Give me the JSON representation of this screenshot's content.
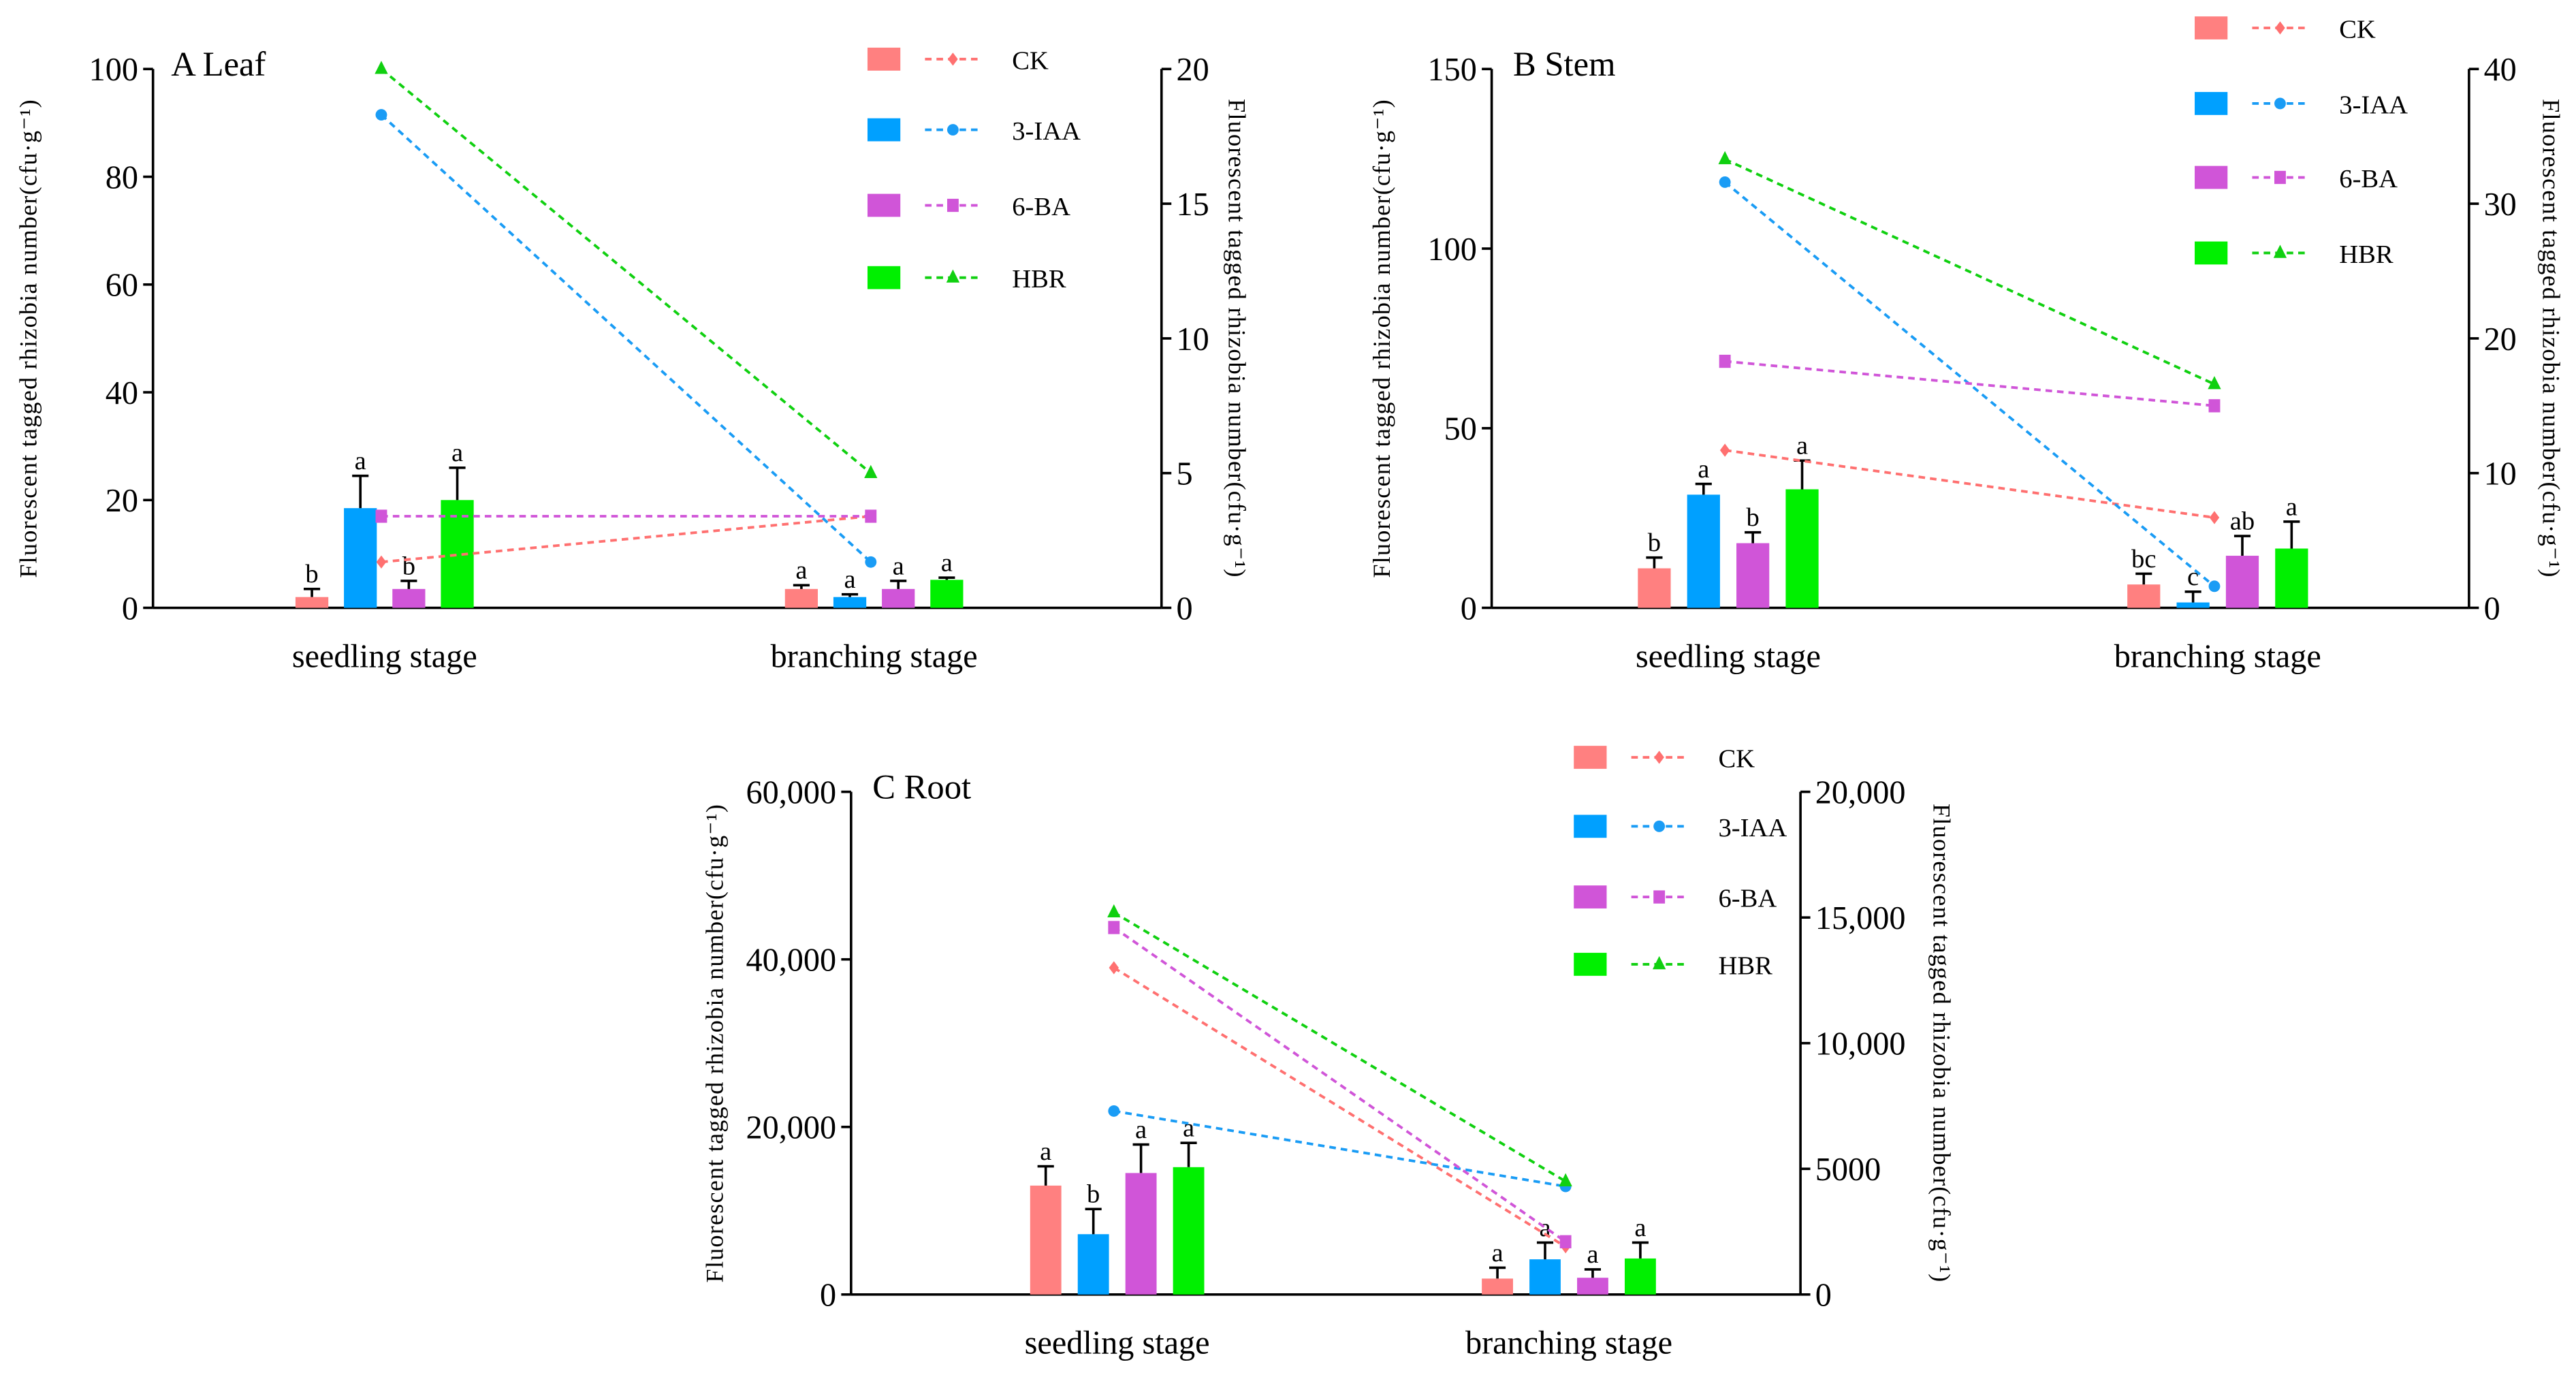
{
  "series_style": [
    {
      "name": "CK",
      "bar_color": "#FF8080",
      "line_color": "#FF7070",
      "marker": "diamond"
    },
    {
      "name": "3-IAA",
      "bar_color": "#00A0FF",
      "line_color": "#1A9CF5",
      "marker": "circle"
    },
    {
      "name": "6-BA",
      "bar_color": "#D055D8",
      "line_color": "#D055D8",
      "marker": "square"
    },
    {
      "name": "HBR",
      "bar_color": "#00F000",
      "line_color": "#10D010",
      "marker": "triangle"
    }
  ],
  "chart_data": [
    {
      "type": "bar+line",
      "title": "A Leaf",
      "categories": [
        "seedling stage",
        "branching stage"
      ],
      "ylabel": "Fluorescent tagged rhizobia number(cfu·g⁻¹)",
      "y2label": "Fluorescent tagged rhizobia number(cfu·g⁻¹)",
      "ylim": [
        0,
        100
      ],
      "y2lim": [
        0,
        20
      ],
      "yticks": [
        "0",
        "20",
        "40",
        "60",
        "80",
        "100"
      ],
      "y2ticks": [
        "0",
        "5",
        "10",
        "15",
        "20"
      ],
      "legend": [
        "CK",
        "3-IAA",
        "6-BA",
        "HBR"
      ],
      "bars": [
        {
          "name": "CK",
          "values": [
            2,
            3.5
          ],
          "errors": [
            1.5,
            0.7
          ],
          "letters": [
            "b",
            "a"
          ]
        },
        {
          "name": "3-IAA",
          "values": [
            18.5,
            2
          ],
          "errors": [
            6,
            0.5
          ],
          "letters": [
            "a",
            "a"
          ]
        },
        {
          "name": "6-BA",
          "values": [
            3.5,
            3.5
          ],
          "errors": [
            1.5,
            1.5
          ],
          "letters": [
            "b",
            "a"
          ]
        },
        {
          "name": "HBR",
          "values": [
            20,
            5.2
          ],
          "errors": [
            6,
            0.4
          ],
          "letters": [
            "a",
            "a"
          ]
        }
      ],
      "lines": [
        {
          "name": "CK",
          "values": [
            1.7,
            3.4
          ]
        },
        {
          "name": "3-IAA",
          "values": [
            18.3,
            1.7
          ]
        },
        {
          "name": "6-BA",
          "values": [
            3.4,
            3.4
          ]
        },
        {
          "name": "HBR",
          "values": [
            20,
            5
          ]
        }
      ]
    },
    {
      "type": "bar+line",
      "title": "B Stem",
      "categories": [
        "seedling stage",
        "branching stage"
      ],
      "ylabel": "Fluorescent tagged rhizobia number(cfu·g⁻¹)",
      "y2label": "Fluorescent tagged rhizobia number(cfu·g⁻¹)",
      "ylim": [
        0,
        150
      ],
      "y2lim": [
        0,
        40
      ],
      "yticks": [
        "0",
        "50",
        "100",
        "150"
      ],
      "y2ticks": [
        "0",
        "10",
        "20",
        "30",
        "40"
      ],
      "legend": [
        "CK",
        "3-IAA",
        "6-BA",
        "HBR"
      ],
      "bars": [
        {
          "name": "CK",
          "values": [
            11,
            6.5
          ],
          "errors": [
            3,
            3
          ],
          "letters": [
            "b",
            "bc"
          ]
        },
        {
          "name": "3-IAA",
          "values": [
            31.5,
            1.5
          ],
          "errors": [
            3,
            3
          ],
          "letters": [
            "a",
            "c"
          ]
        },
        {
          "name": "6-BA",
          "values": [
            18,
            14.5
          ],
          "errors": [
            3,
            5.5
          ],
          "letters": [
            "b",
            "ab"
          ]
        },
        {
          "name": "HBR",
          "values": [
            33,
            16.5
          ],
          "errors": [
            8,
            7.5
          ],
          "letters": [
            "a",
            "a"
          ]
        }
      ],
      "lines": [
        {
          "name": "CK",
          "values": [
            11.7,
            6.7
          ]
        },
        {
          "name": "3-IAA",
          "values": [
            31.6,
            1.6
          ]
        },
        {
          "name": "6-BA",
          "values": [
            18.3,
            15
          ]
        },
        {
          "name": "HBR",
          "values": [
            33.3,
            16.6
          ]
        }
      ]
    },
    {
      "type": "bar+line",
      "title": "C Root",
      "categories": [
        "seedling stage",
        "branching stage"
      ],
      "ylabel": "Fluorescent tagged rhizobia number(cfu·g⁻¹)",
      "y2label": "Fluorescent tagged rhizobia number(cfu·g⁻¹)",
      "ylim": [
        0,
        60000
      ],
      "y2lim": [
        0,
        20000
      ],
      "yticks": [
        "0",
        "20,000",
        "40,000",
        "60,000"
      ],
      "y2ticks": [
        "0",
        "5000",
        "10,000",
        "15,000",
        "20,000"
      ],
      "legend": [
        "CK",
        "3-IAA",
        "6-BA",
        "HBR"
      ],
      "bars": [
        {
          "name": "CK",
          "values": [
            13000,
            1900
          ],
          "errors": [
            2300,
            1300
          ],
          "letters": [
            "a",
            "a"
          ]
        },
        {
          "name": "3-IAA",
          "values": [
            7200,
            4200
          ],
          "errors": [
            3000,
            2000
          ],
          "letters": [
            "b",
            "a"
          ]
        },
        {
          "name": "6-BA",
          "values": [
            14500,
            2000
          ],
          "errors": [
            3400,
            1000
          ],
          "letters": [
            "a",
            "a"
          ]
        },
        {
          "name": "HBR",
          "values": [
            15200,
            4300
          ],
          "errors": [
            2900,
            1900
          ],
          "letters": [
            "a",
            "a"
          ]
        }
      ],
      "lines": [
        {
          "name": "CK",
          "values": [
            13000,
            1900
          ]
        },
        {
          "name": "3-IAA",
          "values": [
            7300,
            4300
          ]
        },
        {
          "name": "6-BA",
          "values": [
            14600,
            2100
          ]
        },
        {
          "name": "HBR",
          "values": [
            15200,
            4500
          ]
        }
      ]
    }
  ]
}
